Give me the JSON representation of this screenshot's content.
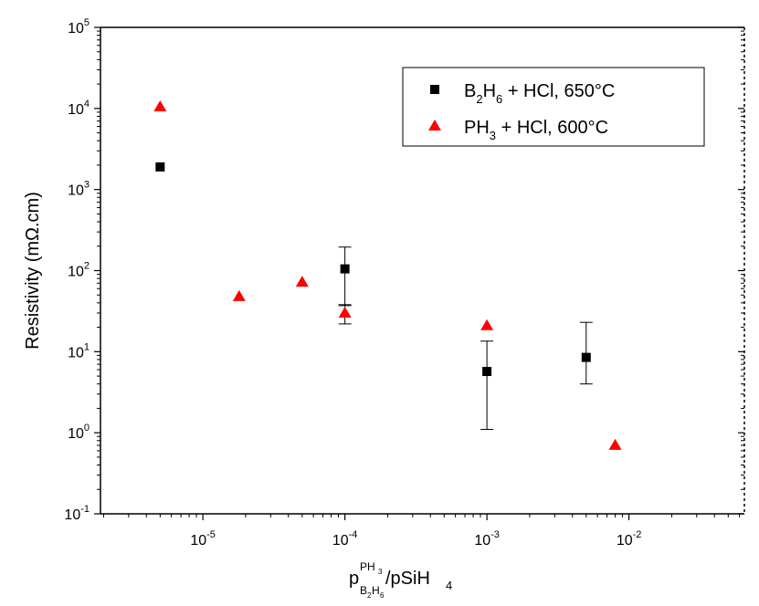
{
  "chart_data": {
    "type": "scatter",
    "title": "",
    "xscale": "log",
    "yscale": "log",
    "xlim": [
      1.9e-06,
      0.065
    ],
    "ylim": [
      0.1,
      100000
    ],
    "xlabel": {
      "base": "p",
      "sup": "PH",
      "sup_sub": "3",
      "sub_a": "B",
      "sub_a_sub": "2",
      "sub_b": "H",
      "sub_b_sub": "6",
      "tail": "/pSiH",
      "tail_sub": "4"
    },
    "ylabel": "Resistivity (mΩ.cm)",
    "xticks": [
      {
        "value": 1e-05,
        "base": "10",
        "exp": "-5"
      },
      {
        "value": 0.0001,
        "base": "10",
        "exp": "-4"
      },
      {
        "value": 0.001,
        "base": "10",
        "exp": "-3"
      },
      {
        "value": 0.01,
        "base": "10",
        "exp": "-2"
      }
    ],
    "yticks": [
      {
        "value": 0.1,
        "base": "10",
        "exp": "-1"
      },
      {
        "value": 1,
        "base": "10",
        "exp": "0"
      },
      {
        "value": 10,
        "base": "10",
        "exp": "1"
      },
      {
        "value": 100,
        "base": "10",
        "exp": "2"
      },
      {
        "value": 1000,
        "base": "10",
        "exp": "3"
      },
      {
        "value": 10000,
        "base": "10",
        "exp": "4"
      },
      {
        "value": 100000,
        "base": "10",
        "exp": "5"
      }
    ],
    "legend_position": "top-right",
    "series": [
      {
        "label_parts": [
          "B",
          "2",
          "H",
          "6",
          " + HCl, 650°C"
        ],
        "marker": "square",
        "color": "#000000",
        "points": [
          {
            "x": 5e-06,
            "y": 1900
          },
          {
            "x": 0.0001,
            "y": 105,
            "err_low": 37,
            "err_high": 195
          },
          {
            "x": 0.001,
            "y": 5.7,
            "err_low": 1.1,
            "err_high": 13.5
          },
          {
            "x": 0.005,
            "y": 8.5,
            "err_low": 4.0,
            "err_high": 23
          }
        ]
      },
      {
        "label_parts": [
          "PH",
          "3",
          " + HCl, 600°C"
        ],
        "marker": "triangle",
        "color": "#ff0000",
        "points": [
          {
            "x": 5e-06,
            "y": 10500
          },
          {
            "x": 1.8e-05,
            "y": 48
          },
          {
            "x": 5e-05,
            "y": 72
          },
          {
            "x": 0.0001,
            "y": 30,
            "err_low": 22,
            "err_high": 38
          },
          {
            "x": 0.001,
            "y": 21
          },
          {
            "x": 0.008,
            "y": 0.7
          }
        ]
      }
    ]
  }
}
